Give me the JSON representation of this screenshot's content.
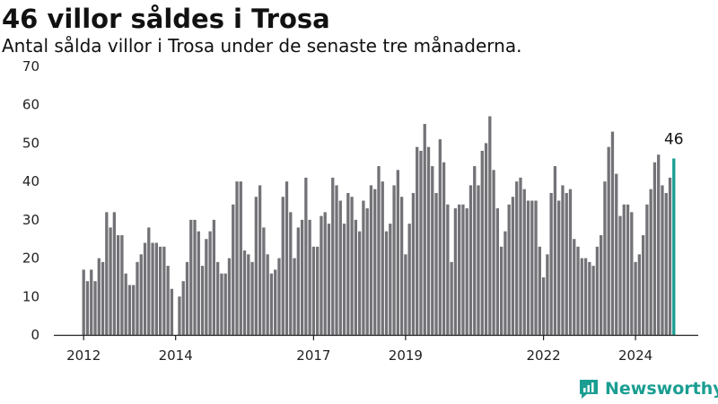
{
  "header": {
    "title": "46 villor såldes i Trosa",
    "subtitle": "Antal sålda villor i Trosa under de senaste tre månaderna."
  },
  "brand": {
    "name": "Newsworthy"
  },
  "colors": {
    "bar": "#737277",
    "highlight": "#1a9e92",
    "axis": "#222222"
  },
  "chart_data": {
    "type": "bar",
    "title": "46 villor såldes i Trosa",
    "subtitle": "Antal sålda villor i Trosa under de senaste tre månaderna.",
    "xlabel": "",
    "ylabel": "",
    "ylim": [
      0,
      70
    ],
    "yticks": [
      0,
      10,
      20,
      30,
      40,
      50,
      60,
      70
    ],
    "xticks": [
      "2012",
      "2014",
      "2017",
      "2019",
      "2022",
      "2024"
    ],
    "grid": false,
    "legend": "none",
    "x_start": "2012-01",
    "x_end": "2024-12",
    "frequency": "monthly",
    "values": [
      17,
      14,
      17,
      14,
      20,
      19,
      32,
      28,
      32,
      26,
      26,
      16,
      13,
      13,
      19,
      21,
      24,
      28,
      24,
      24,
      23,
      23,
      18,
      12,
      null,
      10,
      14,
      19,
      30,
      30,
      27,
      18,
      25,
      27,
      30,
      19,
      16,
      16,
      20,
      34,
      40,
      40,
      22,
      21,
      19,
      36,
      39,
      28,
      21,
      16,
      17,
      20,
      36,
      40,
      32,
      20,
      28,
      30,
      41,
      30,
      23,
      23,
      31,
      32,
      29,
      41,
      39,
      35,
      29,
      37,
      36,
      30,
      27,
      35,
      33,
      39,
      38,
      44,
      40,
      27,
      29,
      39,
      43,
      36,
      21,
      29,
      37,
      49,
      48,
      55,
      49,
      44,
      37,
      51,
      45,
      34,
      19,
      33,
      34,
      34,
      33,
      39,
      44,
      39,
      48,
      50,
      57,
      43,
      33,
      23,
      27,
      34,
      36,
      40,
      41,
      38,
      35,
      35,
      35,
      23,
      15,
      21,
      37,
      44,
      35,
      39,
      37,
      38,
      25,
      23,
      20,
      20,
      19,
      18,
      23,
      26,
      40,
      49,
      53,
      42,
      31,
      34,
      34,
      32,
      19,
      21,
      26,
      34,
      38,
      45,
      47,
      39,
      37,
      41,
      46
    ],
    "annotations": [
      {
        "label": "46",
        "target": "last"
      }
    ]
  }
}
